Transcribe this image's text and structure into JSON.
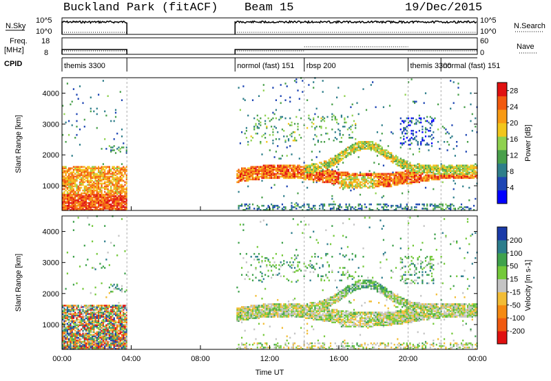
{
  "header": {
    "station": "Buckland Park (fitACF)",
    "beam": "Beam 15",
    "date": "19/Dec/2015"
  },
  "top_panels": {
    "nsky_label": "N.Sky",
    "nsky_ticks": [
      "10^5",
      "10^0"
    ],
    "nsearch_label": "N.Search",
    "nsearch_ticks": [
      "10^5",
      "10^0"
    ],
    "freq_label_1": "Freq.",
    "freq_label_2": "[MHz]",
    "freq_ticks": [
      "18",
      "8"
    ],
    "nave_label": "Nave",
    "nave_ticks": [
      "60",
      "0"
    ],
    "cpid_label": "CPID",
    "cpid_segments": [
      {
        "label": "themis 3300",
        "start": 0.0,
        "end": 3.75
      },
      {
        "label": "normol (fast) 151",
        "start": 10.0,
        "end": 14.0
      },
      {
        "label": "rbsp 200",
        "start": 14.0,
        "end": 20.0
      },
      {
        "label": "themis 3300",
        "start": 20.0,
        "end": 21.9
      },
      {
        "label": "normal (fast) 151",
        "start": 21.9,
        "end": 24.0
      }
    ]
  },
  "chart_data": [
    {
      "type": "heatmap",
      "name": "power",
      "ylabel": "Slant Range [km]",
      "yticks": [
        "1000",
        "2000",
        "3000",
        "4000"
      ],
      "ylim": [
        200,
        4500
      ],
      "colorbar_label": "Power [dB]",
      "colorbar_ticks": [
        "4",
        "8",
        "12",
        "16",
        "20",
        "24",
        "28"
      ],
      "colorbar_range": [
        0,
        30
      ],
      "colors": [
        "#0000ff",
        "#1e46b4",
        "#2e7e8a",
        "#49a04b",
        "#8fd14f",
        "#f2c61c",
        "#f89a14",
        "#f25a0e",
        "#e01010"
      ],
      "data_gaps_ut": [
        [
          3.75,
          10.0
        ]
      ]
    },
    {
      "type": "heatmap",
      "name": "velocity",
      "ylabel": "Slant Range [km]",
      "yticks": [
        "1000",
        "2000",
        "3000",
        "4000"
      ],
      "ylim": [
        200,
        4500
      ],
      "colorbar_label": "Velocity [m s-1]",
      "colorbar_ticks": [
        "200",
        "100",
        "50",
        "15",
        "-15",
        "-50",
        "-100",
        "-200"
      ],
      "colorbar_range": [
        -250,
        250
      ],
      "colors": [
        "#1a3aa8",
        "#2c7d8c",
        "#3fa24c",
        "#74c93a",
        "#c4c4c4",
        "#f2bd36",
        "#f58a12",
        "#f05a10",
        "#e01010"
      ],
      "data_gaps_ut": [
        [
          3.75,
          10.0
        ]
      ]
    }
  ],
  "xaxis": {
    "label": "Time UT",
    "ticks": [
      "00:00",
      "04:00",
      "08:00",
      "12:00",
      "16:00",
      "20:00",
      "00:00"
    ]
  }
}
